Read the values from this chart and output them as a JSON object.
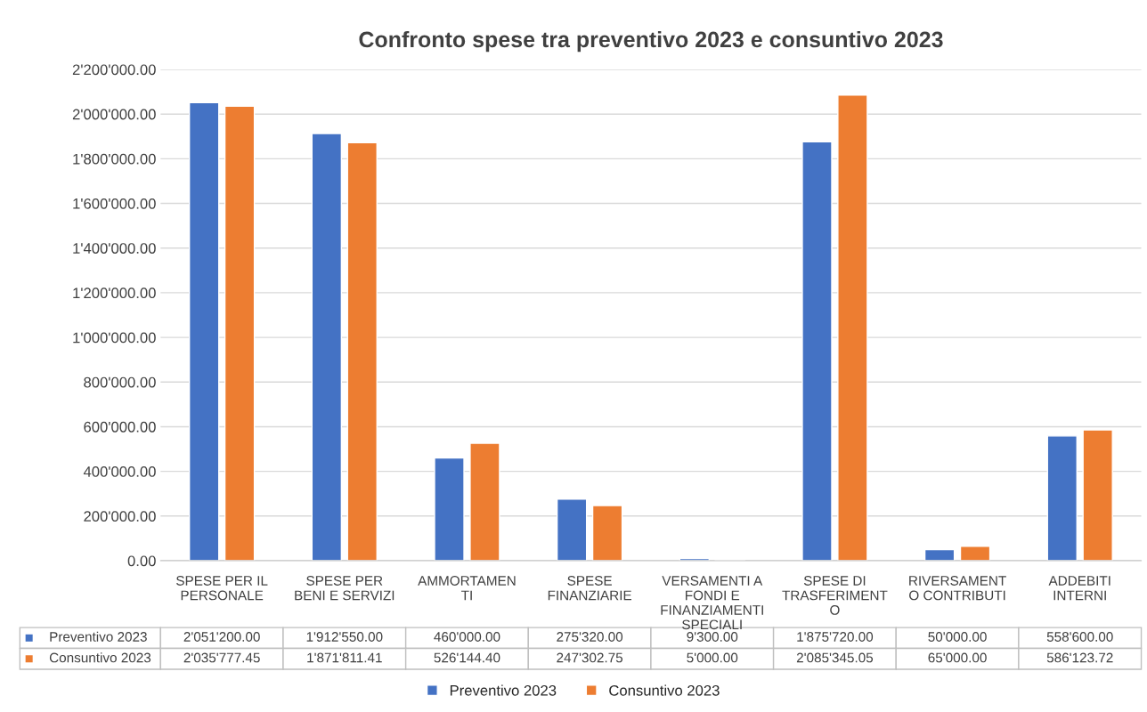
{
  "chart_data": {
    "type": "bar",
    "title": "Confronto spese tra preventivo 2023 e consuntivo 2023",
    "categories": [
      "SPESE PER IL\nPERSONALE",
      "SPESE PER\nBENI E SERVIZI",
      "AMMORTAMEN\nTI",
      "SPESE\nFINANZIARIE",
      "VERSAMENTI A\nFONDI E\nFINANZIAMENTI\nSPECIALI",
      "SPESE DI\nTRASFERIMENT\nO",
      "RIVERSAMENT\nO CONTRIBUTI",
      "ADDEBITI\nINTERNI"
    ],
    "series": [
      {
        "name": "Preventivo 2023",
        "color": "#4472c4",
        "values": [
          2051200.0,
          1912550.0,
          460000.0,
          275320.0,
          9300.0,
          1875720.0,
          50000.0,
          558600.0
        ],
        "value_labels": [
          "2'051'200.00",
          "1'912'550.00",
          "460'000.00",
          "275'320.00",
          "9'300.00",
          "1'875'720.00",
          "50'000.00",
          "558'600.00"
        ]
      },
      {
        "name": "Consuntivo 2023",
        "color": "#ed7d31",
        "values": [
          2035777.45,
          1871811.41,
          526144.4,
          247302.75,
          5000.0,
          2085345.05,
          65000.0,
          586123.72
        ],
        "value_labels": [
          "2'035'777.45",
          "1'871'811.41",
          "526'144.40",
          "247'302.75",
          "5'000.00",
          "2'085'345.05",
          "65'000.00",
          "586'123.72"
        ]
      }
    ],
    "ylim": [
      0,
      2200000
    ],
    "yticks": [
      {
        "value": 0,
        "label": "0.00"
      },
      {
        "value": 200000,
        "label": "200'000.00"
      },
      {
        "value": 400000,
        "label": "400'000.00"
      },
      {
        "value": 600000,
        "label": "600'000.00"
      },
      {
        "value": 800000,
        "label": "800'000.00"
      },
      {
        "value": 1000000,
        "label": "1'000'000.00"
      },
      {
        "value": 1200000,
        "label": "1'200'000.00"
      },
      {
        "value": 1400000,
        "label": "1'400'000.00"
      },
      {
        "value": 1600000,
        "label": "1'600'000.00"
      },
      {
        "value": 1800000,
        "label": "1'800'000.00"
      },
      {
        "value": 2000000,
        "label": "2'000'000.00"
      },
      {
        "value": 2200000,
        "label": "2'200'000.00"
      }
    ],
    "grid": "y",
    "legend": "bottom"
  }
}
